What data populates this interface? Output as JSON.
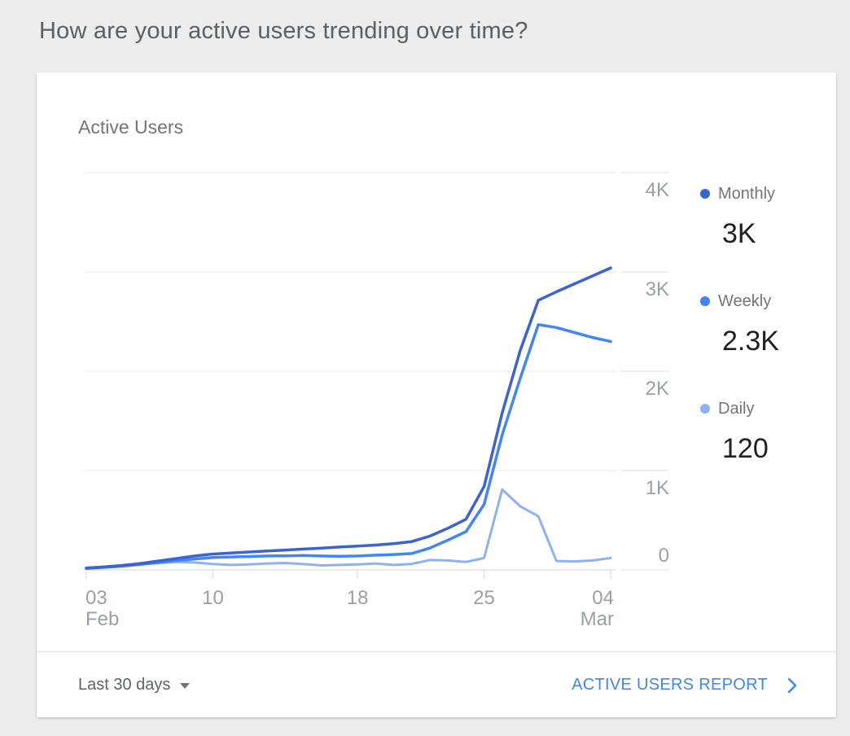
{
  "page": {
    "question": "How are your active users trending over time?"
  },
  "card": {
    "title": "Active Users",
    "legend": [
      {
        "label": "Monthly",
        "value": "3K"
      },
      {
        "label": "Weekly",
        "value": "2.3K"
      },
      {
        "label": "Daily",
        "value": "120"
      }
    ],
    "footer": {
      "range_label": "Last 30 days",
      "report_label": "ACTIVE USERS REPORT",
      "accent_color": "#4285f4"
    }
  },
  "chart_data": {
    "type": "line",
    "title": "Active Users",
    "xlabel": "",
    "ylabel": "",
    "ylim": [
      0,
      4000
    ],
    "grid": true,
    "legend_position": "right",
    "y_ticks": [
      "0",
      "1K",
      "2K",
      "3K",
      "4K"
    ],
    "x": [
      "Feb 3",
      "Feb 4",
      "Feb 5",
      "Feb 6",
      "Feb 7",
      "Feb 8",
      "Feb 9",
      "Feb 10",
      "Feb 11",
      "Feb 12",
      "Feb 13",
      "Feb 14",
      "Feb 15",
      "Feb 16",
      "Feb 17",
      "Feb 18",
      "Feb 19",
      "Feb 20",
      "Feb 21",
      "Feb 22",
      "Feb 23",
      "Feb 24",
      "Feb 25",
      "Feb 26",
      "Feb 27",
      "Feb 28",
      "Mar 1",
      "Mar 2",
      "Mar 3",
      "Mar 4"
    ],
    "x_ticks": [
      {
        "index": 0,
        "label": "03",
        "sub": "Feb"
      },
      {
        "index": 7,
        "label": "10"
      },
      {
        "index": 15,
        "label": "18"
      },
      {
        "index": 22,
        "label": "25"
      },
      {
        "index": 29,
        "label": "04",
        "sub": "Mar"
      }
    ],
    "series": [
      {
        "name": "Monthly",
        "color": "#3b63d2",
        "values": [
          20,
          30,
          45,
          65,
          90,
          115,
          140,
          160,
          170,
          180,
          190,
          200,
          210,
          220,
          230,
          240,
          250,
          265,
          285,
          340,
          420,
          510,
          840,
          1580,
          2210,
          2715,
          2800,
          2880,
          2960,
          3040
        ]
      },
      {
        "name": "Weekly",
        "color": "#4285f4",
        "values": [
          15,
          25,
          38,
          55,
          75,
          95,
          110,
          125,
          130,
          135,
          140,
          142,
          145,
          140,
          138,
          140,
          148,
          155,
          165,
          220,
          300,
          385,
          660,
          1360,
          1930,
          2470,
          2440,
          2390,
          2340,
          2300
        ]
      },
      {
        "name": "Daily",
        "color": "#8fb1f3",
        "values": [
          15,
          25,
          40,
          55,
          70,
          80,
          75,
          60,
          50,
          55,
          65,
          70,
          60,
          45,
          50,
          55,
          65,
          50,
          60,
          100,
          95,
          80,
          120,
          810,
          640,
          540,
          90,
          85,
          95,
          120
        ]
      }
    ]
  }
}
